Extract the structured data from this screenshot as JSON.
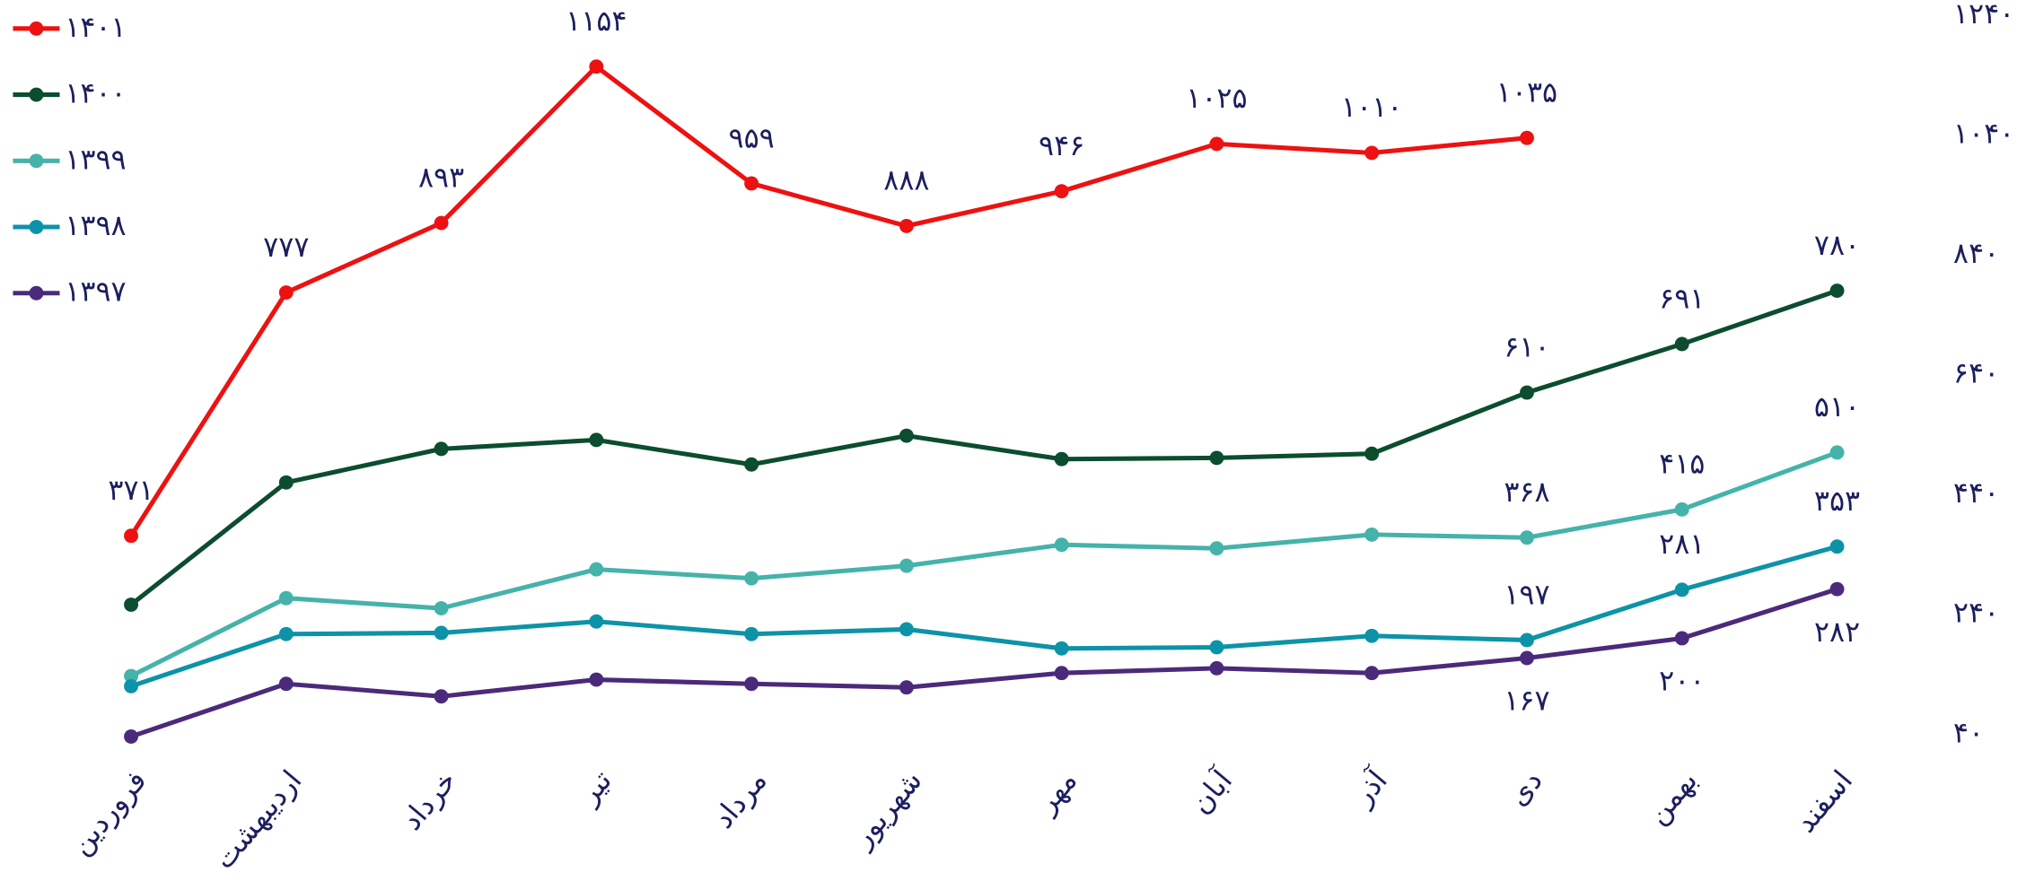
{
  "chart_data": {
    "type": "line",
    "categories": [
      "فروردین",
      "اردیبهشت",
      "خرداد",
      "تیر",
      "مرداد",
      "شهریور",
      "مهر",
      "آبان",
      "آذر",
      "دی",
      "بهمن",
      "اسفند"
    ],
    "series": [
      {
        "name": "۱۴۰۱",
        "color": "#ee1111",
        "values": [
          371,
          777,
          893,
          1154,
          959,
          888,
          946,
          1025,
          1010,
          1035,
          null,
          null
        ],
        "value_labels": [
          "۳۷۱",
          "۷۷۷",
          "۸۹۳",
          "۱۱۵۴",
          "۹۵۹",
          "۸۸۸",
          "۹۴۶",
          "۱۰۲۵",
          "۱۰۱۰",
          "۱۰۳۵",
          null,
          null
        ]
      },
      {
        "name": "۱۴۰۰",
        "color": "#0b4d2e",
        "values": [
          256,
          460,
          516,
          531,
          490,
          538,
          499,
          501,
          508,
          610,
          691,
          780
        ],
        "value_labels": [
          null,
          null,
          null,
          null,
          null,
          null,
          null,
          null,
          null,
          "۶۱۰",
          "۶۹۱",
          "۷۸۰"
        ]
      },
      {
        "name": "۱۳۹۹",
        "color": "#45b3aa",
        "values": [
          137,
          267,
          250,
          315,
          300,
          321,
          356,
          350,
          373,
          368,
          415,
          510
        ],
        "value_labels": [
          null,
          null,
          null,
          null,
          null,
          null,
          null,
          null,
          null,
          "۳۶۸",
          "۴۱۵",
          "۵۱۰"
        ]
      },
      {
        "name": "۱۳۹۸",
        "color": "#0d93a8",
        "values": [
          120,
          207,
          209,
          228,
          207,
          215,
          183,
          185,
          204,
          197,
          281,
          353
        ],
        "value_labels": [
          null,
          null,
          null,
          null,
          null,
          null,
          null,
          null,
          null,
          "۱۹۷",
          "۲۸۱",
          "۳۵۳"
        ]
      },
      {
        "name": "۱۳۹۷",
        "color": "#4b2a7b",
        "values": [
          36,
          124,
          103,
          131,
          124,
          118,
          142,
          150,
          142,
          167,
          200,
          282
        ],
        "value_labels": [
          null,
          null,
          null,
          null,
          null,
          null,
          null,
          null,
          null,
          "۱۶۷",
          "۲۰۰",
          "۲۸۲"
        ]
      }
    ],
    "ylim": [
      40,
      1240
    ],
    "yticks": [
      {
        "value": 40,
        "label": "۴۰"
      },
      {
        "value": 240,
        "label": "۲۴۰"
      },
      {
        "value": 440,
        "label": "۴۴۰"
      },
      {
        "value": 640,
        "label": "۶۴۰"
      },
      {
        "value": 840,
        "label": "۸۴۰"
      },
      {
        "value": 1040,
        "label": "۱۰۴۰"
      },
      {
        "value": 1240,
        "label": "۱۲۴۰"
      }
    ],
    "legend": "top-left"
  }
}
